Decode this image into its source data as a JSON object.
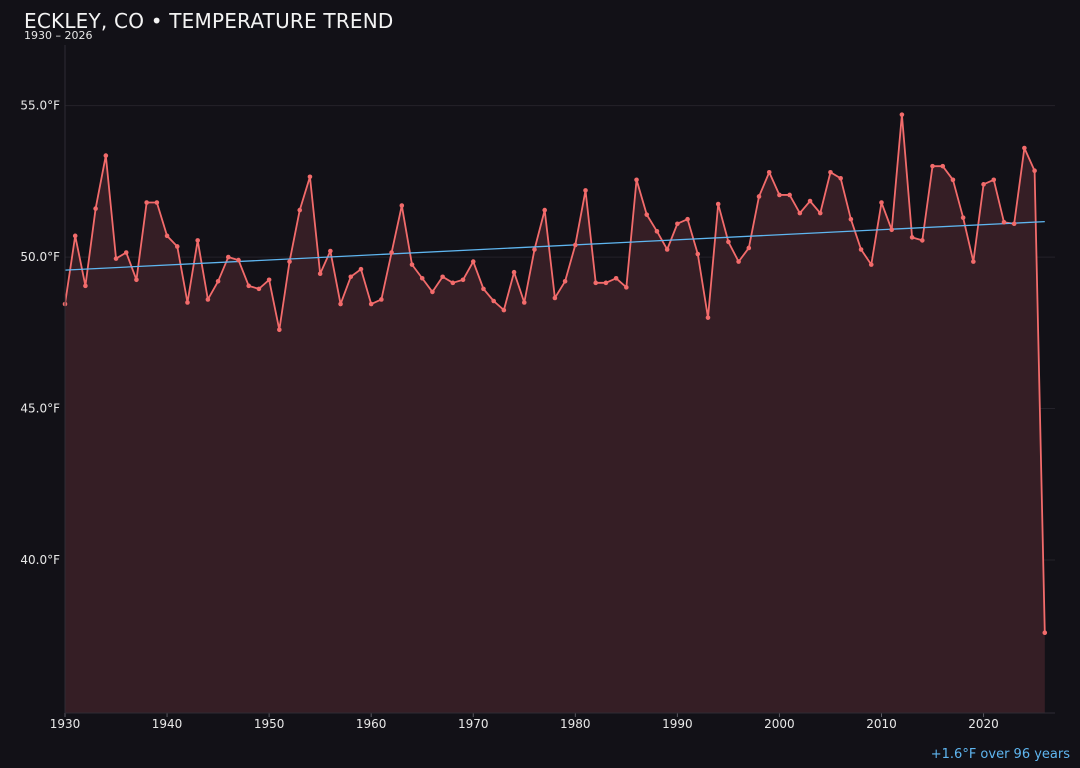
{
  "chart_data": {
    "type": "line",
    "title": "ECKLEY, CO • TEMPERATURE TREND",
    "subtitle": "1930 – 2026",
    "xlabel": "",
    "ylabel": "",
    "xlim": [
      1930,
      2027
    ],
    "ylim": [
      34.95,
      57.0
    ],
    "x_ticks": [
      1930,
      1940,
      1950,
      1960,
      1970,
      1980,
      1990,
      2000,
      2010,
      2020
    ],
    "y_ticks": [
      40,
      45,
      50,
      55
    ],
    "y_tick_labels": [
      "40.0°F",
      "45.0°F",
      "50.0°F",
      "55.0°F"
    ],
    "grid": "horizontal",
    "series": [
      {
        "color": "#f26b6b",
        "fill": "#351e25",
        "x": [
          1930,
          1931,
          1932,
          1933,
          1934,
          1935,
          1936,
          1937,
          1938,
          1939,
          1940,
          1941,
          1942,
          1943,
          1944,
          1945,
          1946,
          1947,
          1948,
          1949,
          1950,
          1951,
          1952,
          1953,
          1954,
          1955,
          1956,
          1957,
          1958,
          1959,
          1960,
          1961,
          1962,
          1963,
          1964,
          1965,
          1966,
          1967,
          1968,
          1969,
          1970,
          1971,
          1972,
          1973,
          1974,
          1975,
          1976,
          1977,
          1978,
          1979,
          1980,
          1981,
          1982,
          1983,
          1984,
          1985,
          1986,
          1987,
          1988,
          1989,
          1990,
          1991,
          1992,
          1993,
          1994,
          1995,
          1996,
          1997,
          1998,
          1999,
          2000,
          2001,
          2002,
          2003,
          2004,
          2005,
          2006,
          2007,
          2008,
          2009,
          2010,
          2011,
          2012,
          2013,
          2014,
          2015,
          2016,
          2017,
          2018,
          2019,
          2020,
          2021,
          2022,
          2023,
          2024,
          2025,
          2026
        ],
        "y": [
          48.45,
          50.7,
          49.05,
          51.6,
          53.35,
          49.95,
          50.15,
          49.25,
          51.8,
          51.8,
          50.7,
          50.35,
          48.5,
          50.55,
          48.6,
          49.2,
          50.0,
          49.9,
          49.05,
          48.95,
          49.25,
          47.6,
          49.85,
          51.55,
          52.65,
          49.45,
          50.2,
          48.45,
          49.35,
          49.6,
          48.45,
          48.6,
          50.15,
          51.7,
          49.75,
          49.3,
          48.85,
          49.35,
          49.15,
          49.25,
          49.85,
          48.95,
          48.55,
          48.25,
          49.5,
          48.5,
          50.25,
          51.55,
          48.65,
          49.2,
          50.4,
          52.2,
          49.15,
          49.15,
          49.3,
          49.0,
          52.55,
          51.4,
          50.85,
          50.25,
          51.1,
          51.25,
          50.1,
          48.0,
          51.75,
          50.5,
          49.85,
          50.3,
          52.0,
          52.8,
          52.05,
          52.05,
          51.45,
          51.85,
          51.45,
          52.8,
          52.6,
          51.25,
          50.25,
          49.75,
          51.8,
          50.9,
          54.7,
          50.65,
          50.55,
          53.0,
          53.0,
          52.55,
          51.3,
          49.85,
          52.4,
          52.55,
          51.15,
          51.1,
          53.6,
          52.85,
          37.6
        ]
      }
    ],
    "trend": {
      "color": "#5fb6f0",
      "x": [
        1930,
        2026
      ],
      "y": [
        49.57,
        51.17
      ],
      "label": "+1.6°F over 96 years"
    }
  }
}
